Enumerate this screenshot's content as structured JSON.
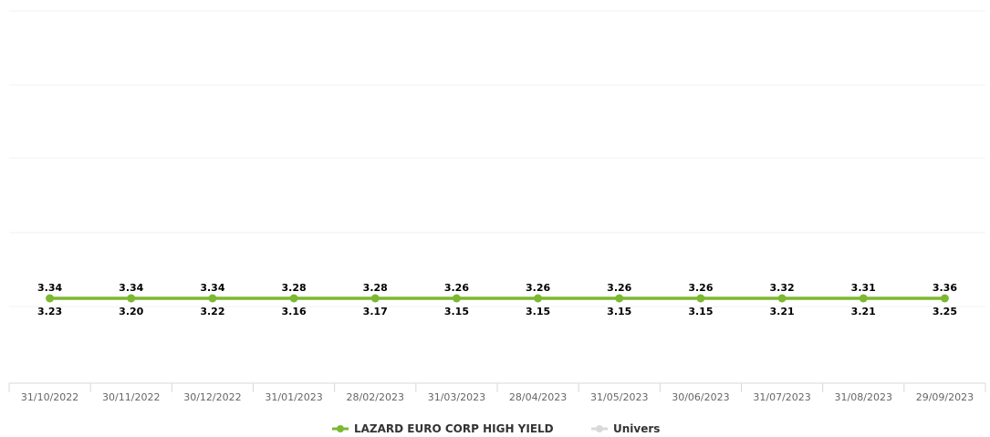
{
  "chart_data": {
    "type": "line",
    "categories": [
      "31/10/2022",
      "30/11/2022",
      "30/12/2022",
      "31/01/2023",
      "28/02/2023",
      "31/03/2023",
      "28/04/2023",
      "31/05/2023",
      "30/06/2023",
      "31/07/2023",
      "31/08/2023",
      "29/09/2023"
    ],
    "series": [
      {
        "name": "LAZARD EURO CORP HIGH YIELD",
        "color": "#7cb832",
        "values": [
          3.34,
          3.34,
          3.34,
          3.28,
          3.28,
          3.26,
          3.26,
          3.26,
          3.26,
          3.32,
          3.31,
          3.36
        ]
      },
      {
        "name": "Univers",
        "color": "#d9d9d9",
        "values": [
          3.23,
          3.2,
          3.22,
          3.16,
          3.17,
          3.15,
          3.15,
          3.15,
          3.15,
          3.21,
          3.21,
          3.25
        ]
      }
    ],
    "grid": true,
    "legend_position": "bottom-center"
  }
}
